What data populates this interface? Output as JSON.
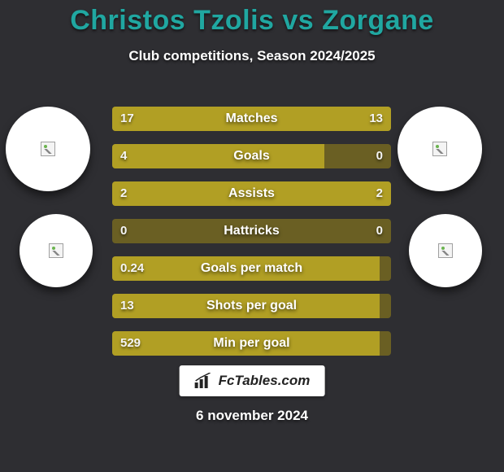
{
  "background_color": "#2e2e32",
  "title": {
    "text": "Christos Tzolis vs Zorgane",
    "color": "#20a7a1",
    "fontsize": 34
  },
  "subtitle": {
    "text": "Club competitions, Season 2024/2025",
    "fontsize": 17
  },
  "bar_style": {
    "track_color": "#6a5f23",
    "fill_color": "#b19f24",
    "height": 30,
    "gap": 16,
    "label_fontsize": 16,
    "value_fontsize": 15
  },
  "stats": [
    {
      "label": "Matches",
      "left_val": "17",
      "right_val": "13",
      "left_pct": 56.7,
      "right_pct": 43.3
    },
    {
      "label": "Goals",
      "left_val": "4",
      "right_val": "0",
      "left_pct": 76.0,
      "right_pct": 0.0
    },
    {
      "label": "Assists",
      "left_val": "2",
      "right_val": "2",
      "left_pct": 50.0,
      "right_pct": 50.0
    },
    {
      "label": "Hattricks",
      "left_val": "0",
      "right_val": "0",
      "left_pct": 0.0,
      "right_pct": 0.0
    },
    {
      "label": "Goals per match",
      "left_val": "0.24",
      "right_val": "",
      "left_pct": 96.0,
      "right_pct": 0.0
    },
    {
      "label": "Shots per goal",
      "left_val": "13",
      "right_val": "",
      "left_pct": 96.0,
      "right_pct": 0.0
    },
    {
      "label": "Min per goal",
      "left_val": "529",
      "right_val": "",
      "left_pct": 96.0,
      "right_pct": 0.0
    }
  ],
  "avatars": {
    "top_left": {
      "name": "player-left-avatar"
    },
    "top_right": {
      "name": "player-right-avatar"
    },
    "bottom_left": {
      "name": "club-left-logo"
    },
    "bottom_right": {
      "name": "club-right-logo"
    }
  },
  "brand": {
    "text": "FcTables.com"
  },
  "date": {
    "text": "6 november 2024"
  }
}
